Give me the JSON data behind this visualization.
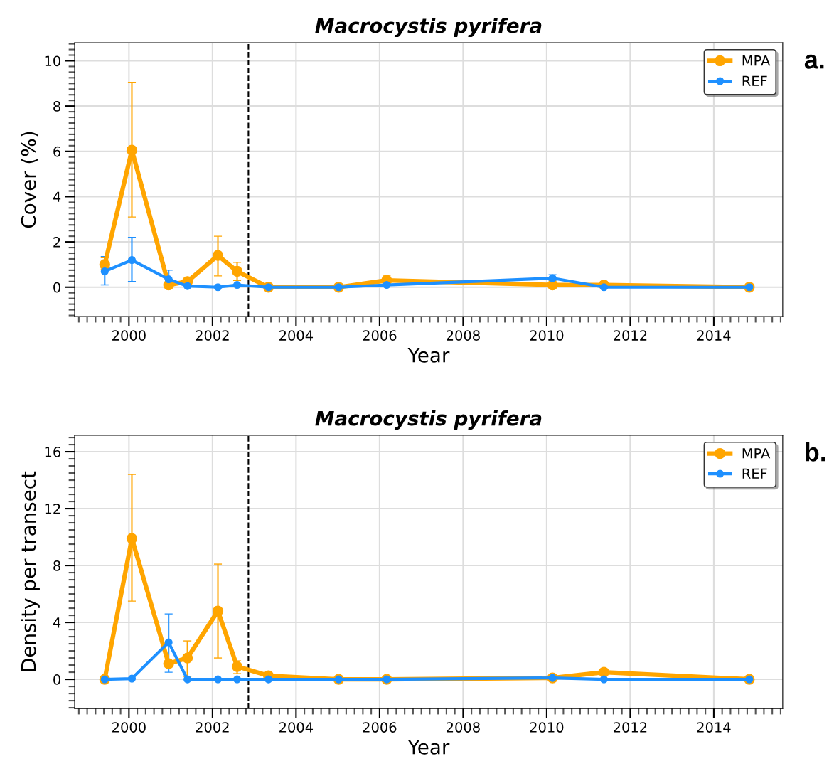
{
  "chart_data": [
    {
      "type": "line",
      "title": "Macrocystis pyrifera",
      "xlabel": "Year",
      "ylabel": "Cover (%)",
      "annotations": [
        "a."
      ],
      "x": [
        1999.42,
        2000.07,
        2000.95,
        2001.4,
        2002.13,
        2002.59,
        2003.34,
        2005.02,
        2006.17,
        2010.14,
        2011.37,
        2014.85
      ],
      "series": [
        {
          "name": "MPA",
          "color": "#ffa500",
          "values": [
            1.0,
            6.05,
            0.1,
            0.25,
            1.4,
            0.7,
            0.0,
            0.0,
            0.3,
            0.1,
            0.1,
            0.0
          ],
          "errors": [
            [
              0.8,
              1.3
            ],
            [
              3.1,
              9.05
            ],
            null,
            null,
            [
              0.5,
              2.25
            ],
            [
              0.3,
              1.1
            ],
            null,
            null,
            [
              0.2,
              0.5
            ],
            null,
            null,
            null
          ]
        },
        {
          "name": "REF",
          "color": "#1e90ff",
          "values": [
            0.7,
            1.2,
            0.35,
            0.05,
            0.0,
            0.1,
            0.0,
            0.0,
            0.1,
            0.4,
            0.0,
            0.0
          ],
          "errors": [
            [
              0.1,
              1.35
            ],
            [
              0.25,
              2.2
            ],
            [
              0.35,
              0.75
            ],
            null,
            null,
            null,
            null,
            null,
            null,
            [
              0.3,
              0.55
            ],
            null,
            null
          ]
        }
      ],
      "xlim": [
        1998.7,
        2015.65
      ],
      "xticks": [
        2000,
        2002,
        2004,
        2006,
        2008,
        2010,
        2012,
        2014
      ],
      "ylim": [
        -1.3,
        10.8
      ],
      "yticks": [
        0,
        2,
        4,
        6,
        8,
        10
      ],
      "ref_lines": [
        {
          "axis": "x",
          "value": 2002.86,
          "color": "#000000",
          "line_style": "dashed"
        }
      ],
      "grid": true,
      "legend": "top right",
      "marker": "circle",
      "line_style": "solid"
    },
    {
      "type": "line",
      "title": "Macrocystis pyrifera",
      "xlabel": "Year",
      "ylabel": "Density per transect",
      "annotations": [
        "b."
      ],
      "x": [
        1999.42,
        2000.07,
        2000.95,
        2001.4,
        2002.13,
        2002.59,
        2003.34,
        2005.02,
        2006.17,
        2010.14,
        2011.37,
        2014.85
      ],
      "series": [
        {
          "name": "MPA",
          "color": "#ffa500",
          "values": [
            0.0,
            9.9,
            1.1,
            1.5,
            4.8,
            0.9,
            0.25,
            0.0,
            0.0,
            0.1,
            0.5,
            0.0
          ],
          "errors": [
            null,
            [
              5.5,
              14.4
            ],
            null,
            [
              0.2,
              2.7
            ],
            [
              1.5,
              8.1
            ],
            [
              0.4,
              1.3
            ],
            null,
            null,
            null,
            null,
            null,
            null
          ]
        },
        {
          "name": "REF",
          "color": "#1e90ff",
          "values": [
            0.0,
            0.05,
            2.6,
            0.0,
            0.0,
            0.0,
            0.0,
            0.0,
            0.0,
            0.1,
            0.0,
            0.0
          ],
          "errors": [
            null,
            null,
            [
              0.5,
              4.6
            ],
            null,
            null,
            null,
            null,
            null,
            null,
            null,
            null,
            null
          ]
        }
      ],
      "xlim": [
        1998.7,
        2015.65
      ],
      "xticks": [
        2000,
        2002,
        2004,
        2006,
        2008,
        2010,
        2012,
        2014
      ],
      "ylim": [
        -2.05,
        17.15
      ],
      "yticks": [
        0,
        4,
        8,
        12,
        16
      ],
      "ref_lines": [
        {
          "axis": "x",
          "value": 2002.86,
          "color": "#000000",
          "line_style": "dashed"
        }
      ],
      "grid": true,
      "legend": "top right",
      "marker": "circle",
      "line_style": "solid"
    }
  ]
}
